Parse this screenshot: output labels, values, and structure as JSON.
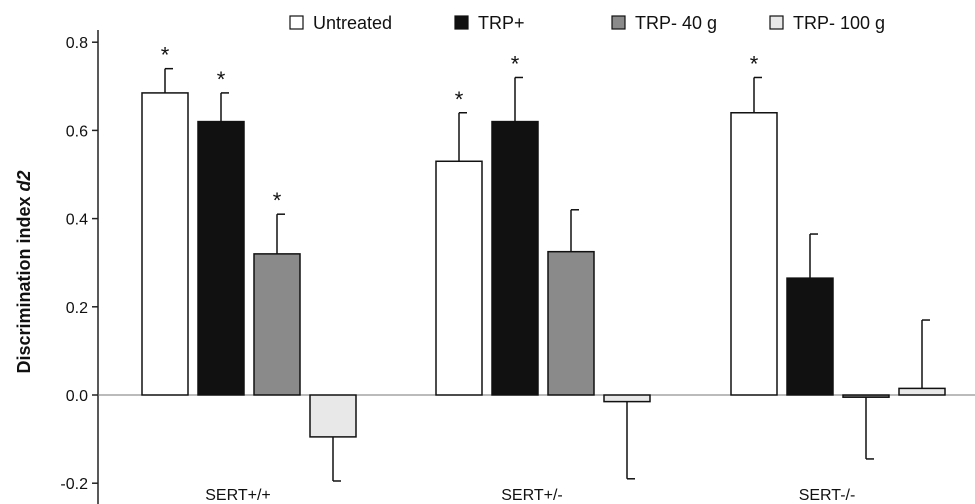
{
  "chart_data": {
    "type": "bar",
    "categories": [
      "SERT+/+",
      "SERT+/-",
      "SERT-/-"
    ],
    "series": [
      {
        "name": "Untreated",
        "values": [
          0.685,
          0.53,
          0.64
        ],
        "errors": [
          0.055,
          0.11,
          0.08
        ],
        "color": "#ffffff"
      },
      {
        "name": "TRP+",
        "values": [
          0.62,
          0.62,
          0.265
        ],
        "errors": [
          0.065,
          0.1,
          0.1
        ],
        "color": "#111111"
      },
      {
        "name": "TRP- 40 g",
        "values": [
          0.32,
          0.325,
          -0.005
        ],
        "errors": [
          0.09,
          0.095,
          0.14
        ],
        "color": "#8a8a8a"
      },
      {
        "name": "TRP- 100 g",
        "values": [
          -0.095,
          -0.015,
          0.015
        ],
        "errors": [
          0.1,
          0.175,
          0.155
        ],
        "color": "#e8e8e8"
      }
    ],
    "significance": [
      [
        "*",
        "*",
        "*",
        ""
      ],
      [
        "*",
        "*",
        "",
        ""
      ],
      [
        "*",
        "",
        "",
        ""
      ]
    ],
    "ylabel_prefix": "Discrimination index ",
    "ylabel_emphasis": "d2",
    "ylim": [
      -0.22,
      0.8
    ],
    "yticks": [
      -0.2,
      0.0,
      0.2,
      0.4,
      0.6,
      0.8
    ],
    "ytick_labels": [
      "-0.2",
      "0.0",
      "0.2",
      "0.4",
      "0.6",
      "0.8"
    ],
    "legend_position": "top",
    "grid": false,
    "zero_line": true
  }
}
